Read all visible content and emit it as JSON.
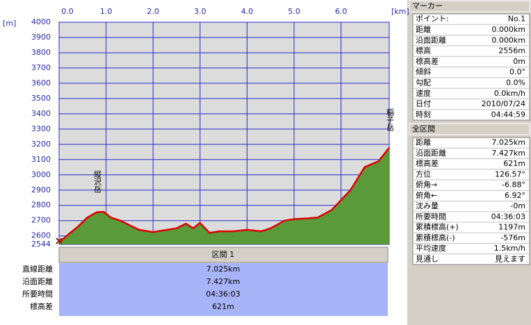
{
  "chart_data": {
    "type": "area",
    "y_label": "[m]",
    "x_label": "[km]",
    "annotations": [
      "縦沢岳",
      "稲子岳"
    ],
    "x": [
      0,
      0.2,
      0.4,
      0.6,
      0.8,
      0.95,
      1.1,
      1.3,
      1.5,
      1.7,
      2.0,
      2.3,
      2.5,
      2.7,
      2.85,
      3.0,
      3.2,
      3.4,
      3.7,
      4.0,
      4.3,
      4.5,
      4.8,
      5.0,
      5.3,
      5.5,
      5.8,
      6.0,
      6.2,
      6.5,
      6.8,
      7.025
    ],
    "series": [
      {
        "color": "#e00000",
        "fill": "#5a9a3a",
        "values": [
          2556,
          2610,
          2660,
          2720,
          2755,
          2758,
          2720,
          2700,
          2670,
          2640,
          2625,
          2640,
          2650,
          2680,
          2650,
          2685,
          2620,
          2630,
          2630,
          2640,
          2630,
          2650,
          2700,
          2710,
          2715,
          2720,
          2770,
          2835,
          2900,
          3050,
          3090,
          3178
        ]
      }
    ],
    "xlim": [
      0,
      7.025
    ],
    "xticks": [
      {
        "value": 0,
        "label": "0.0"
      },
      {
        "value": 1,
        "label": "1.0"
      },
      {
        "value": 2,
        "label": "2.0"
      },
      {
        "value": 3,
        "label": "3.0"
      },
      {
        "value": 4,
        "label": "4.0"
      },
      {
        "value": 5,
        "label": "5.0"
      },
      {
        "value": 6,
        "label": "6.0"
      }
    ],
    "ylim": [
      2544,
      4000
    ],
    "yticks": [
      4000,
      3900,
      3800,
      3700,
      3600,
      3500,
      3400,
      3300,
      3200,
      3100,
      3000,
      2900,
      2800,
      2700,
      2600,
      2544
    ],
    "grid": true
  },
  "section": {
    "header": "区間 1",
    "rows": [
      [
        "直線距離",
        "7.025km"
      ],
      [
        "沿面距離",
        "7.427km"
      ],
      [
        "所要時間",
        "04:36:03"
      ],
      [
        "標高差",
        "621m"
      ]
    ]
  },
  "marker_panel": {
    "title": "マーカー",
    "rows": [
      [
        "ポイント:",
        "No.1"
      ],
      [
        "距離",
        "0.000km"
      ],
      [
        "沿面距離",
        "0.000km"
      ],
      [
        "標高",
        "2556m"
      ],
      [
        "標高差",
        "0m"
      ],
      [
        "傾斜",
        "0.0°"
      ],
      [
        "勾配",
        "0.0%"
      ],
      [
        "速度",
        "0.0km/h"
      ],
      [
        "日付",
        "2010/07/24"
      ],
      [
        "時刻",
        "04:44:59"
      ]
    ]
  },
  "summary_panel": {
    "title": "全区間",
    "rows": [
      [
        "距離",
        "7.025km"
      ],
      [
        "沿面距離",
        "7.427km"
      ],
      [
        "標高差",
        "621m"
      ],
      [
        "方位",
        "126.57°"
      ],
      [
        "俯角→",
        "-6.88°"
      ],
      [
        "俯角←",
        "6.92°"
      ],
      [
        "沈み量",
        "-0m"
      ],
      [
        "所要時間",
        "04:36:03"
      ],
      [
        "累積標高(+)",
        "1197m"
      ],
      [
        "累積標高(-)",
        "-576m"
      ],
      [
        "平均速度",
        "1.5km/h"
      ],
      [
        "見通し",
        "見えます"
      ]
    ]
  }
}
